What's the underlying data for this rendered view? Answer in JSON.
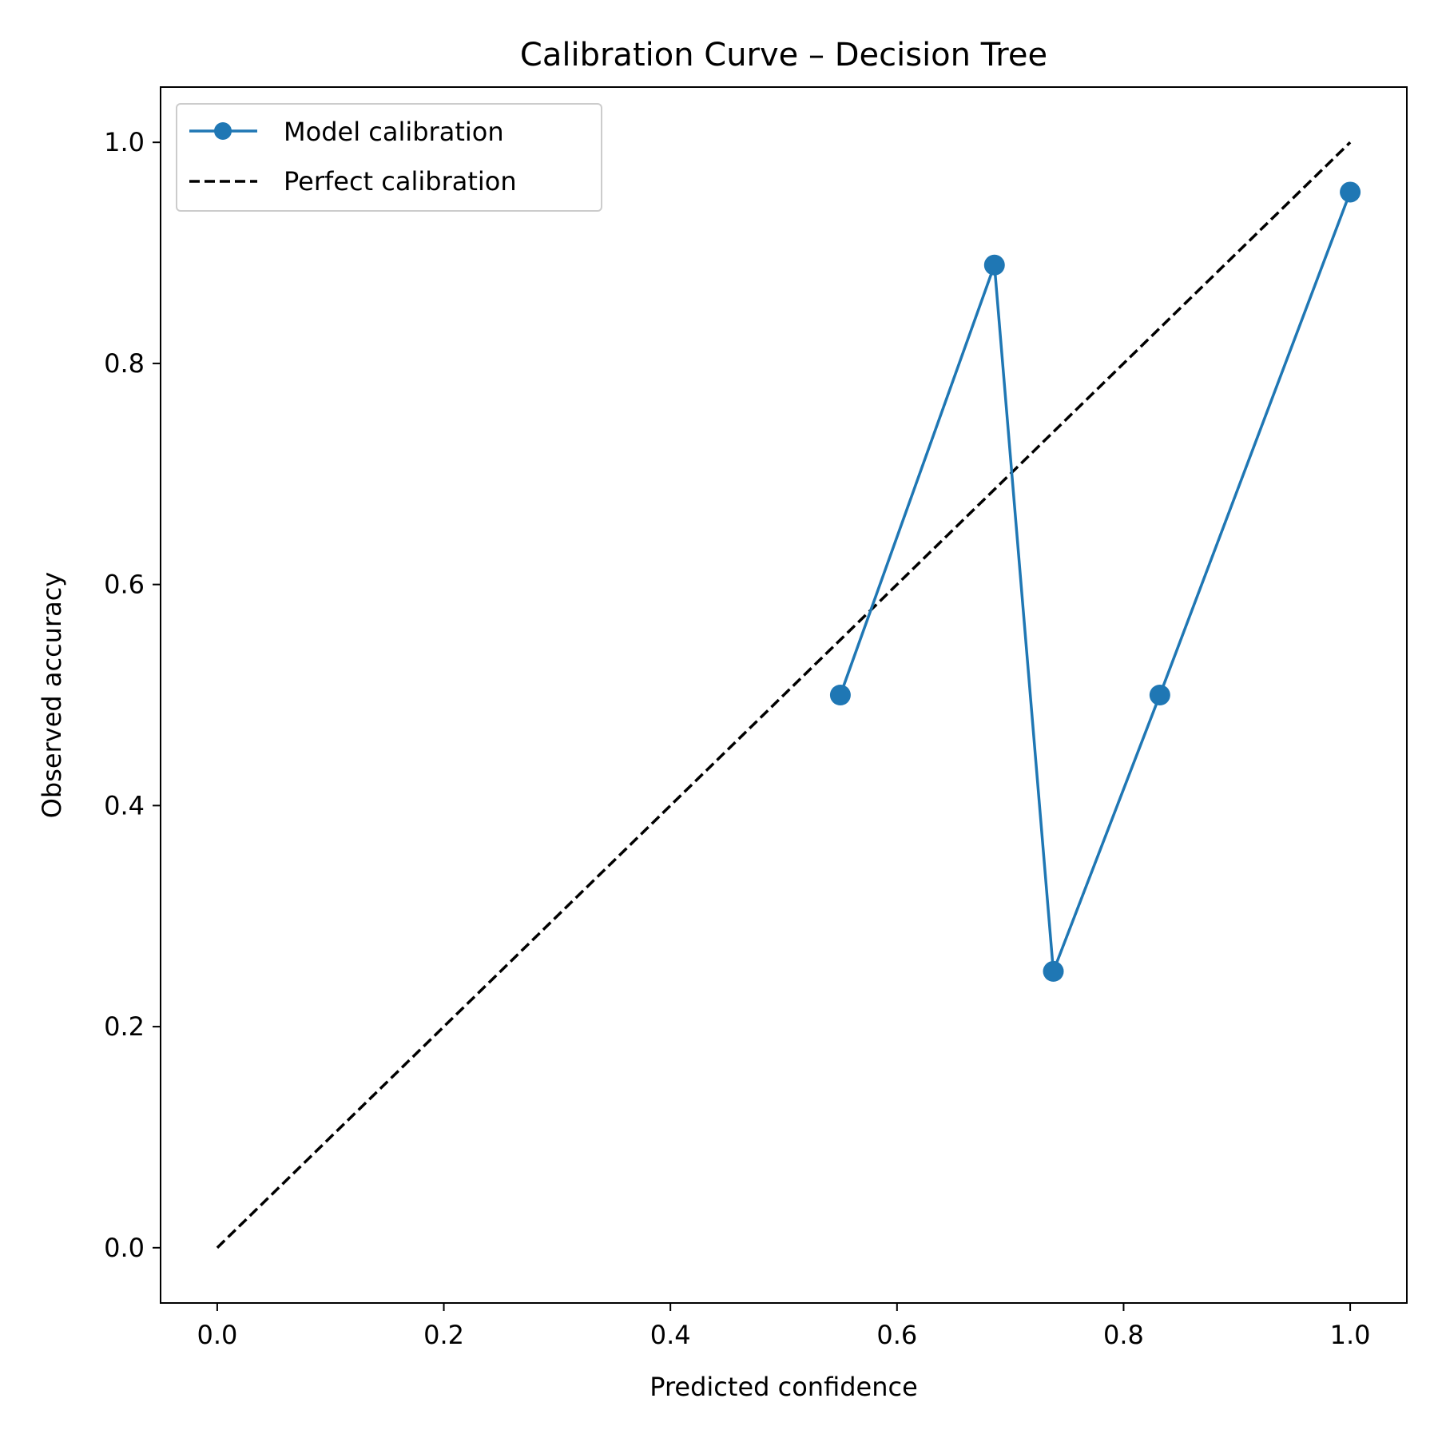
{
  "chart_data": {
    "type": "line",
    "title": "Calibration Curve – Decision Tree",
    "xlabel": "Predicted confidence",
    "ylabel": "Observed accuracy",
    "xlim": [
      -0.05,
      1.05
    ],
    "ylim": [
      -0.05,
      1.05
    ],
    "xticks": [
      0.0,
      0.2,
      0.4,
      0.6,
      0.8,
      1.0
    ],
    "yticks": [
      0.0,
      0.2,
      0.4,
      0.6,
      0.8,
      1.0
    ],
    "tick_labels_x": [
      "0.0",
      "0.2",
      "0.4",
      "0.6",
      "0.8",
      "1.0"
    ],
    "tick_labels_y": [
      "0.0",
      "0.2",
      "0.4",
      "0.6",
      "0.8",
      "1.0"
    ],
    "grid": false,
    "legend_position": "top-left",
    "series": [
      {
        "name": "Model calibration",
        "style": "solid-with-circle-markers",
        "color": "#1f77b4",
        "x": [
          0.55,
          0.686,
          0.738,
          0.832,
          1.0
        ],
        "y": [
          0.5,
          0.889,
          0.25,
          0.5,
          0.955
        ]
      },
      {
        "name": "Perfect calibration",
        "style": "dashed",
        "color": "#000000",
        "x": [
          0.0,
          1.0
        ],
        "y": [
          0.0,
          1.0
        ]
      }
    ]
  }
}
